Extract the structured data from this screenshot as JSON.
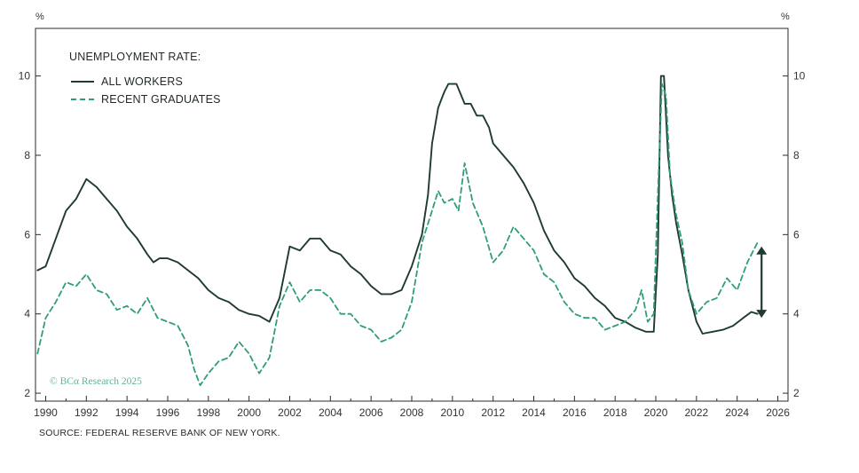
{
  "chart_data": {
    "type": "line",
    "y_unit_left": "%",
    "y_unit_right": "%",
    "legend": {
      "title": "UNEMPLOYMENT RATE:",
      "entries": [
        "ALL WORKERS",
        "RECENT GRADUATES"
      ],
      "placement": "top-left"
    },
    "copyright": "© BCα Research 2025",
    "source": "SOURCE: FEDERAL RESERVE BANK OF NEW YORK.",
    "xlim": [
      1989.5,
      2026.5
    ],
    "ylim": [
      1.8,
      11.2
    ],
    "x_ticks": [
      1990,
      1992,
      1994,
      1996,
      1998,
      2000,
      2002,
      2004,
      2006,
      2008,
      2010,
      2012,
      2014,
      2016,
      2018,
      2020,
      2022,
      2024,
      2026
    ],
    "x_tick_labels": [
      "1990",
      "1992",
      "1994",
      "1996",
      "1998",
      "2000",
      "2002",
      "2004",
      "2006",
      "2008",
      "2010",
      "2012",
      "2014",
      "2016",
      "2018",
      "2020",
      "2022",
      "2024",
      "2026"
    ],
    "y_ticks": [
      2,
      4,
      6,
      8,
      10
    ],
    "y_tick_labels": [
      "2",
      "4",
      "6",
      "8",
      "10"
    ],
    "gap_arrow": {
      "x": 2025.2,
      "from": 3.9,
      "to": 5.7
    },
    "series": [
      {
        "name": "ALL WORKERS",
        "color": "#1f3a30",
        "style": "solid",
        "points": [
          [
            1989.6,
            5.1
          ],
          [
            1990.0,
            5.2
          ],
          [
            1990.5,
            5.9
          ],
          [
            1991.0,
            6.6
          ],
          [
            1991.5,
            6.9
          ],
          [
            1992.0,
            7.4
          ],
          [
            1992.5,
            7.2
          ],
          [
            1993.0,
            6.9
          ],
          [
            1993.5,
            6.6
          ],
          [
            1994.0,
            6.2
          ],
          [
            1994.5,
            5.9
          ],
          [
            1995.0,
            5.5
          ],
          [
            1995.3,
            5.3
          ],
          [
            1995.6,
            5.4
          ],
          [
            1996.0,
            5.4
          ],
          [
            1996.5,
            5.3
          ],
          [
            1997.0,
            5.1
          ],
          [
            1997.5,
            4.9
          ],
          [
            1998.0,
            4.6
          ],
          [
            1998.5,
            4.4
          ],
          [
            1999.0,
            4.3
          ],
          [
            1999.5,
            4.1
          ],
          [
            2000.0,
            4.0
          ],
          [
            2000.5,
            3.95
          ],
          [
            2001.0,
            3.8
          ],
          [
            2001.5,
            4.4
          ],
          [
            2002.0,
            5.7
          ],
          [
            2002.5,
            5.6
          ],
          [
            2003.0,
            5.9
          ],
          [
            2003.5,
            5.9
          ],
          [
            2004.0,
            5.6
          ],
          [
            2004.5,
            5.5
          ],
          [
            2005.0,
            5.2
          ],
          [
            2005.5,
            5.0
          ],
          [
            2006.0,
            4.7
          ],
          [
            2006.5,
            4.5
          ],
          [
            2007.0,
            4.5
          ],
          [
            2007.5,
            4.6
          ],
          [
            2008.0,
            5.2
          ],
          [
            2008.5,
            6.0
          ],
          [
            2008.8,
            7.0
          ],
          [
            2009.0,
            8.3
          ],
          [
            2009.3,
            9.2
          ],
          [
            2009.6,
            9.6
          ],
          [
            2009.8,
            9.8
          ],
          [
            2010.2,
            9.8
          ],
          [
            2010.6,
            9.3
          ],
          [
            2010.9,
            9.3
          ],
          [
            2011.2,
            9.0
          ],
          [
            2011.5,
            9.0
          ],
          [
            2011.8,
            8.7
          ],
          [
            2012.0,
            8.3
          ],
          [
            2012.5,
            8.0
          ],
          [
            2013.0,
            7.7
          ],
          [
            2013.5,
            7.3
          ],
          [
            2014.0,
            6.8
          ],
          [
            2014.5,
            6.1
          ],
          [
            2015.0,
            5.6
          ],
          [
            2015.5,
            5.3
          ],
          [
            2016.0,
            4.9
          ],
          [
            2016.5,
            4.7
          ],
          [
            2017.0,
            4.4
          ],
          [
            2017.5,
            4.2
          ],
          [
            2018.0,
            3.9
          ],
          [
            2018.5,
            3.8
          ],
          [
            2019.0,
            3.65
          ],
          [
            2019.5,
            3.55
          ],
          [
            2019.9,
            3.55
          ],
          [
            2020.1,
            5.5
          ],
          [
            2020.25,
            10.0
          ],
          [
            2020.4,
            10.0
          ],
          [
            2020.6,
            8.0
          ],
          [
            2020.8,
            7.0
          ],
          [
            2021.0,
            6.3
          ],
          [
            2021.3,
            5.5
          ],
          [
            2021.6,
            4.6
          ],
          [
            2022.0,
            3.8
          ],
          [
            2022.3,
            3.5
          ],
          [
            2022.8,
            3.55
          ],
          [
            2023.3,
            3.6
          ],
          [
            2023.8,
            3.7
          ],
          [
            2024.3,
            3.9
          ],
          [
            2024.7,
            4.05
          ],
          [
            2025.0,
            4.0
          ]
        ]
      },
      {
        "name": "RECENT GRADUATES",
        "color": "#2f9c7d",
        "style": "dashed",
        "points": [
          [
            1989.6,
            3.0
          ],
          [
            1990.0,
            3.9
          ],
          [
            1990.5,
            4.3
          ],
          [
            1991.0,
            4.8
          ],
          [
            1991.5,
            4.7
          ],
          [
            1992.0,
            5.0
          ],
          [
            1992.5,
            4.6
          ],
          [
            1993.0,
            4.5
          ],
          [
            1993.5,
            4.1
          ],
          [
            1994.0,
            4.2
          ],
          [
            1994.5,
            4.0
          ],
          [
            1995.0,
            4.4
          ],
          [
            1995.5,
            3.9
          ],
          [
            1996.0,
            3.8
          ],
          [
            1996.5,
            3.7
          ],
          [
            1997.0,
            3.2
          ],
          [
            1997.3,
            2.6
          ],
          [
            1997.6,
            2.2
          ],
          [
            1998.0,
            2.5
          ],
          [
            1998.5,
            2.8
          ],
          [
            1999.0,
            2.9
          ],
          [
            1999.5,
            3.3
          ],
          [
            2000.0,
            3.0
          ],
          [
            2000.5,
            2.5
          ],
          [
            2001.0,
            2.9
          ],
          [
            2001.5,
            4.2
          ],
          [
            2002.0,
            4.8
          ],
          [
            2002.5,
            4.3
          ],
          [
            2003.0,
            4.6
          ],
          [
            2003.5,
            4.6
          ],
          [
            2004.0,
            4.4
          ],
          [
            2004.5,
            4.0
          ],
          [
            2005.0,
            4.0
          ],
          [
            2005.5,
            3.7
          ],
          [
            2006.0,
            3.6
          ],
          [
            2006.5,
            3.3
          ],
          [
            2007.0,
            3.4
          ],
          [
            2007.5,
            3.6
          ],
          [
            2008.0,
            4.3
          ],
          [
            2008.5,
            5.8
          ],
          [
            2009.0,
            6.6
          ],
          [
            2009.3,
            7.1
          ],
          [
            2009.6,
            6.8
          ],
          [
            2010.0,
            6.9
          ],
          [
            2010.3,
            6.6
          ],
          [
            2010.6,
            7.8
          ],
          [
            2011.0,
            6.8
          ],
          [
            2011.5,
            6.2
          ],
          [
            2012.0,
            5.3
          ],
          [
            2012.5,
            5.6
          ],
          [
            2013.0,
            6.2
          ],
          [
            2013.5,
            5.9
          ],
          [
            2014.0,
            5.6
          ],
          [
            2014.5,
            5.0
          ],
          [
            2015.0,
            4.8
          ],
          [
            2015.5,
            4.3
          ],
          [
            2016.0,
            4.0
          ],
          [
            2016.5,
            3.9
          ],
          [
            2017.0,
            3.9
          ],
          [
            2017.5,
            3.6
          ],
          [
            2018.0,
            3.7
          ],
          [
            2018.5,
            3.8
          ],
          [
            2019.0,
            4.1
          ],
          [
            2019.3,
            4.6
          ],
          [
            2019.6,
            3.8
          ],
          [
            2019.9,
            4.0
          ],
          [
            2020.1,
            7.0
          ],
          [
            2020.3,
            9.8
          ],
          [
            2020.5,
            9.5
          ],
          [
            2020.7,
            7.5
          ],
          [
            2021.0,
            6.5
          ],
          [
            2021.3,
            5.8
          ],
          [
            2021.6,
            4.6
          ],
          [
            2022.0,
            4.0
          ],
          [
            2022.5,
            4.3
          ],
          [
            2023.0,
            4.4
          ],
          [
            2023.5,
            4.9
          ],
          [
            2024.0,
            4.6
          ],
          [
            2024.5,
            5.3
          ],
          [
            2025.0,
            5.8
          ]
        ]
      }
    ]
  }
}
